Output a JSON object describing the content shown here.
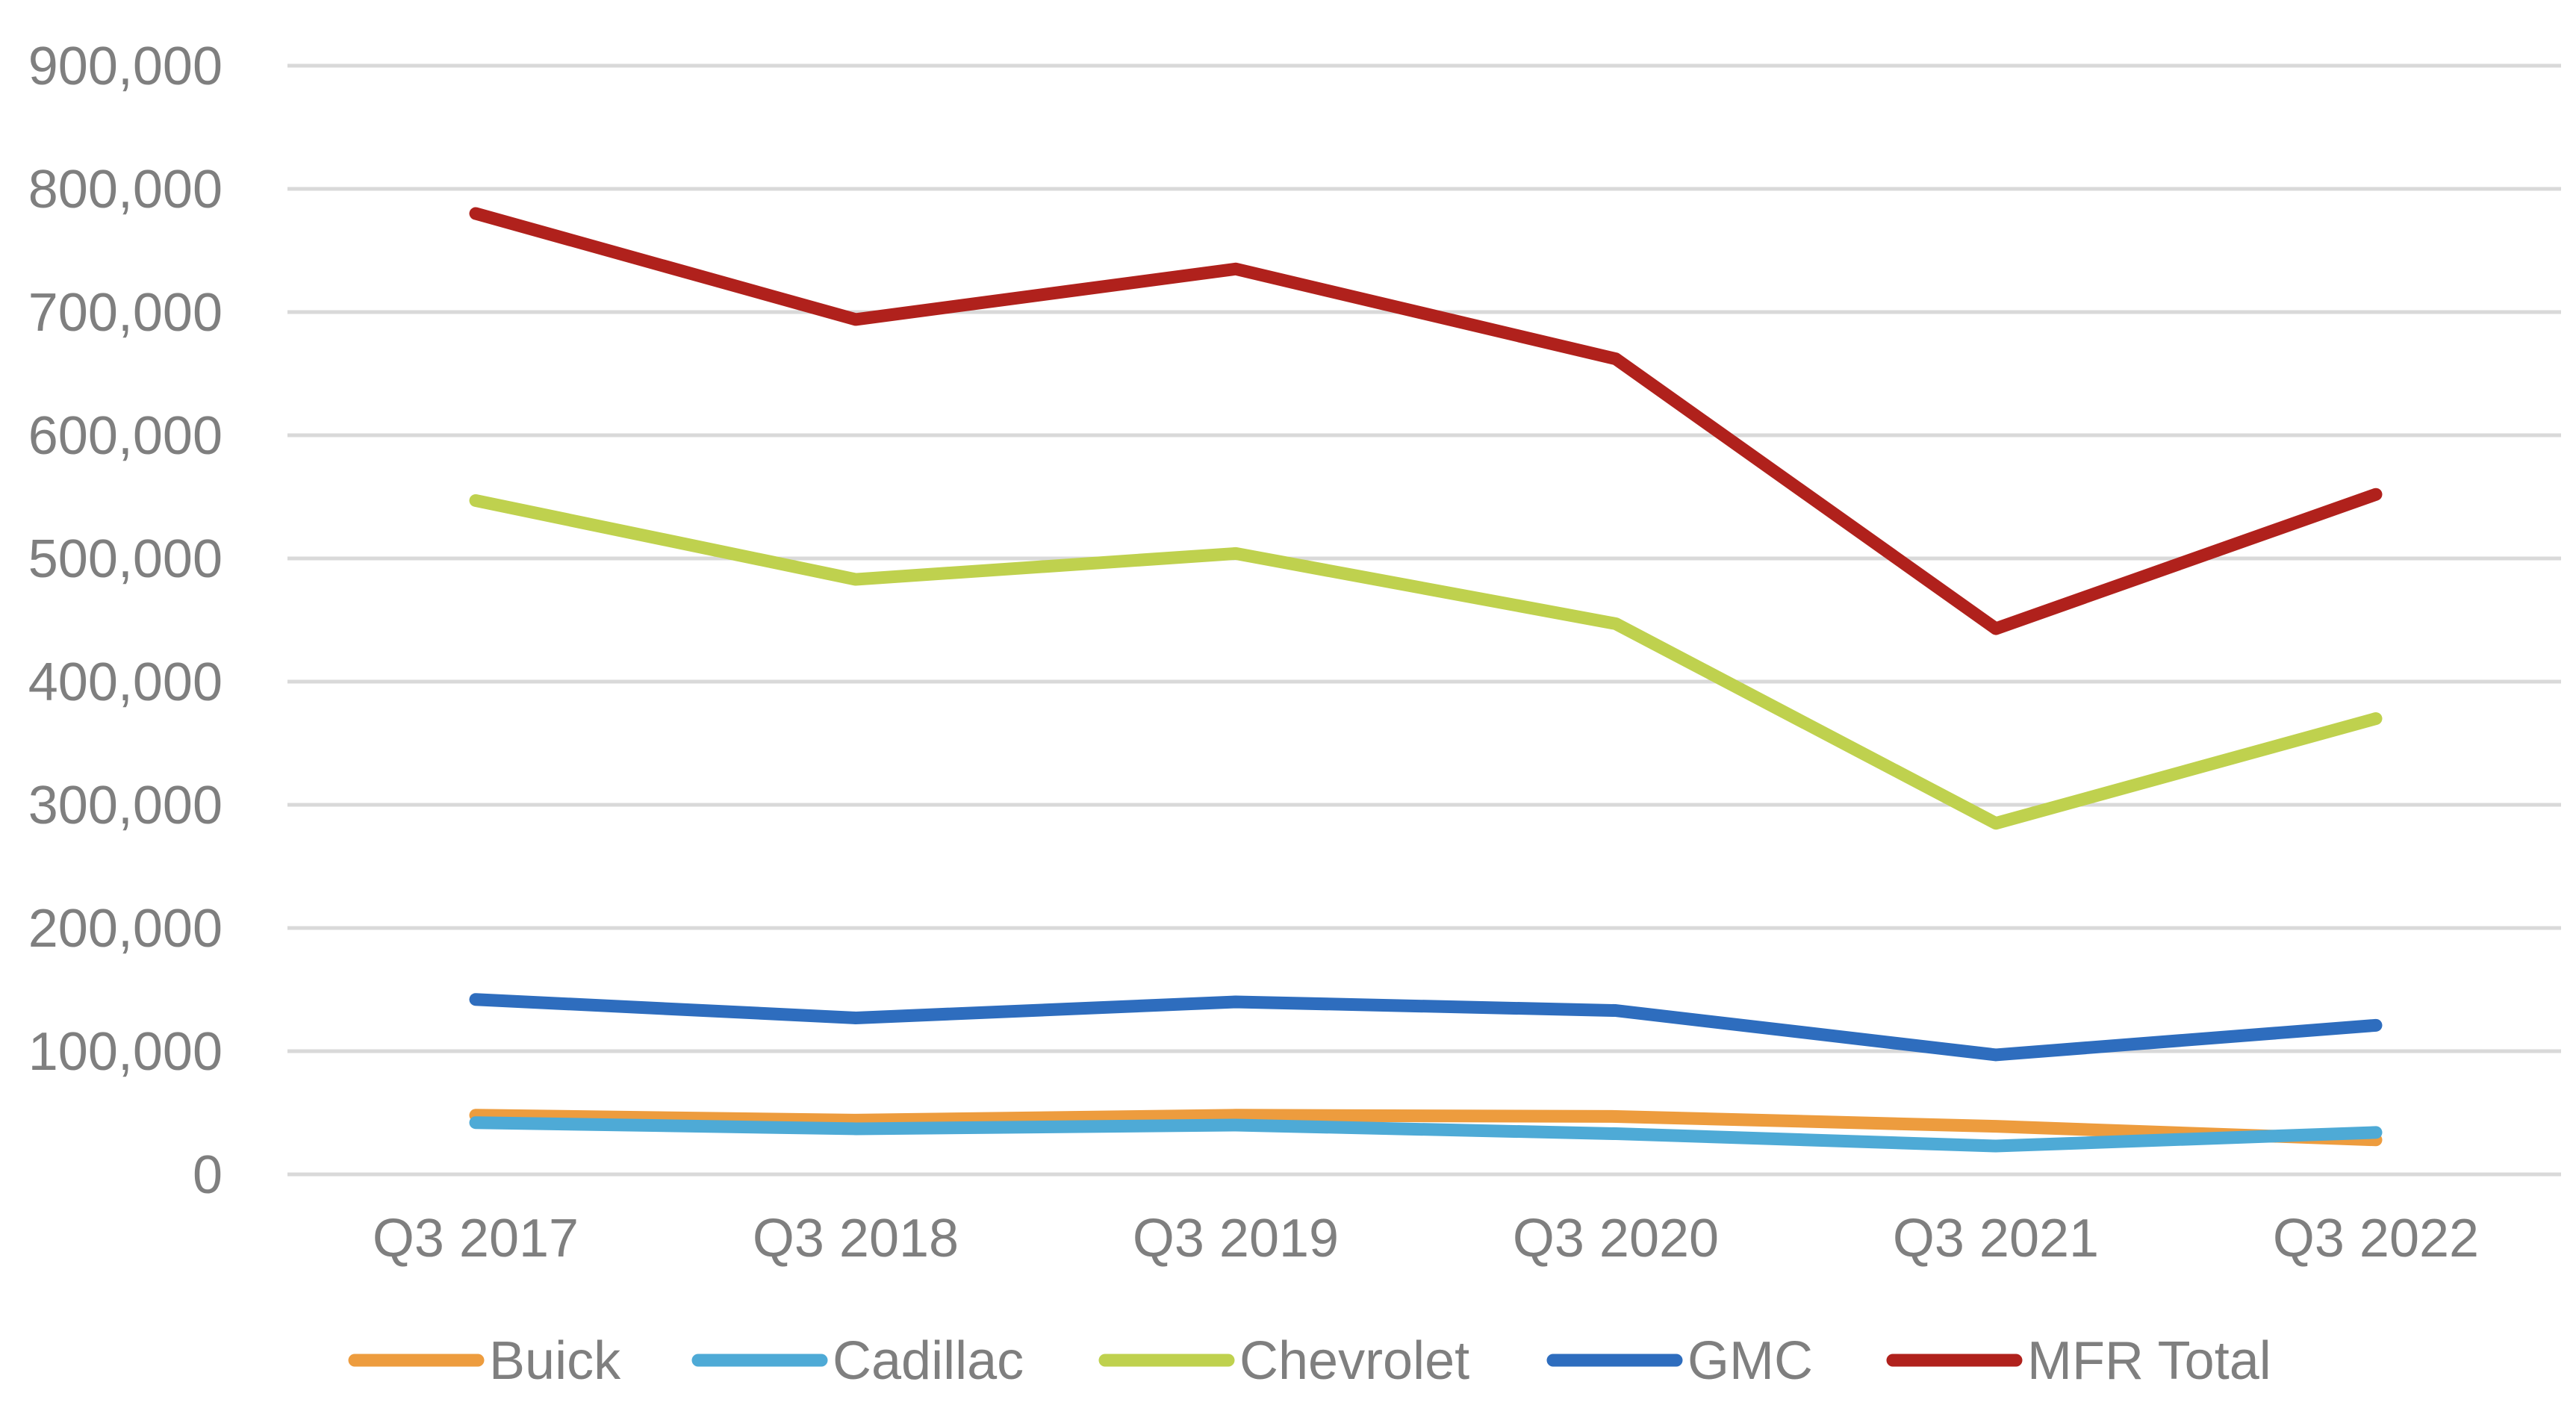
{
  "chart_data": {
    "type": "line",
    "title": "",
    "xlabel": "",
    "ylabel": "",
    "categories": [
      "Q3 2017",
      "Q3 2018",
      "Q3 2019",
      "Q3 2020",
      "Q3 2021",
      "Q3 2022"
    ],
    "ylim": [
      0,
      900000
    ],
    "y_ticks": [
      0,
      100000,
      200000,
      300000,
      400000,
      500000,
      600000,
      700000,
      800000,
      900000
    ],
    "y_tick_labels": [
      "0",
      "100,000",
      "200,000",
      "300,000",
      "400,000",
      "500,000",
      "600,000",
      "700,000",
      "800,000",
      "900,000"
    ],
    "grid": true,
    "legend_position": "bottom",
    "series": [
      {
        "name": "Buick",
        "color": "#ED9C3E",
        "values": [
          48000,
          44000,
          48000,
          47000,
          39000,
          28000
        ]
      },
      {
        "name": "Cadillac",
        "color": "#4EAAD6",
        "values": [
          42000,
          37000,
          40000,
          33000,
          23000,
          34000
        ]
      },
      {
        "name": "Chevrolet",
        "color": "#BFD14E",
        "values": [
          547000,
          483000,
          504000,
          447000,
          285000,
          370000
        ]
      },
      {
        "name": "GMC",
        "color": "#2E6DBE",
        "values": [
          142000,
          127000,
          140000,
          133000,
          97000,
          121000
        ]
      },
      {
        "name": "MFR Total",
        "color": "#B0211C",
        "values": [
          780000,
          694000,
          735000,
          662000,
          443000,
          552000
        ]
      }
    ]
  }
}
